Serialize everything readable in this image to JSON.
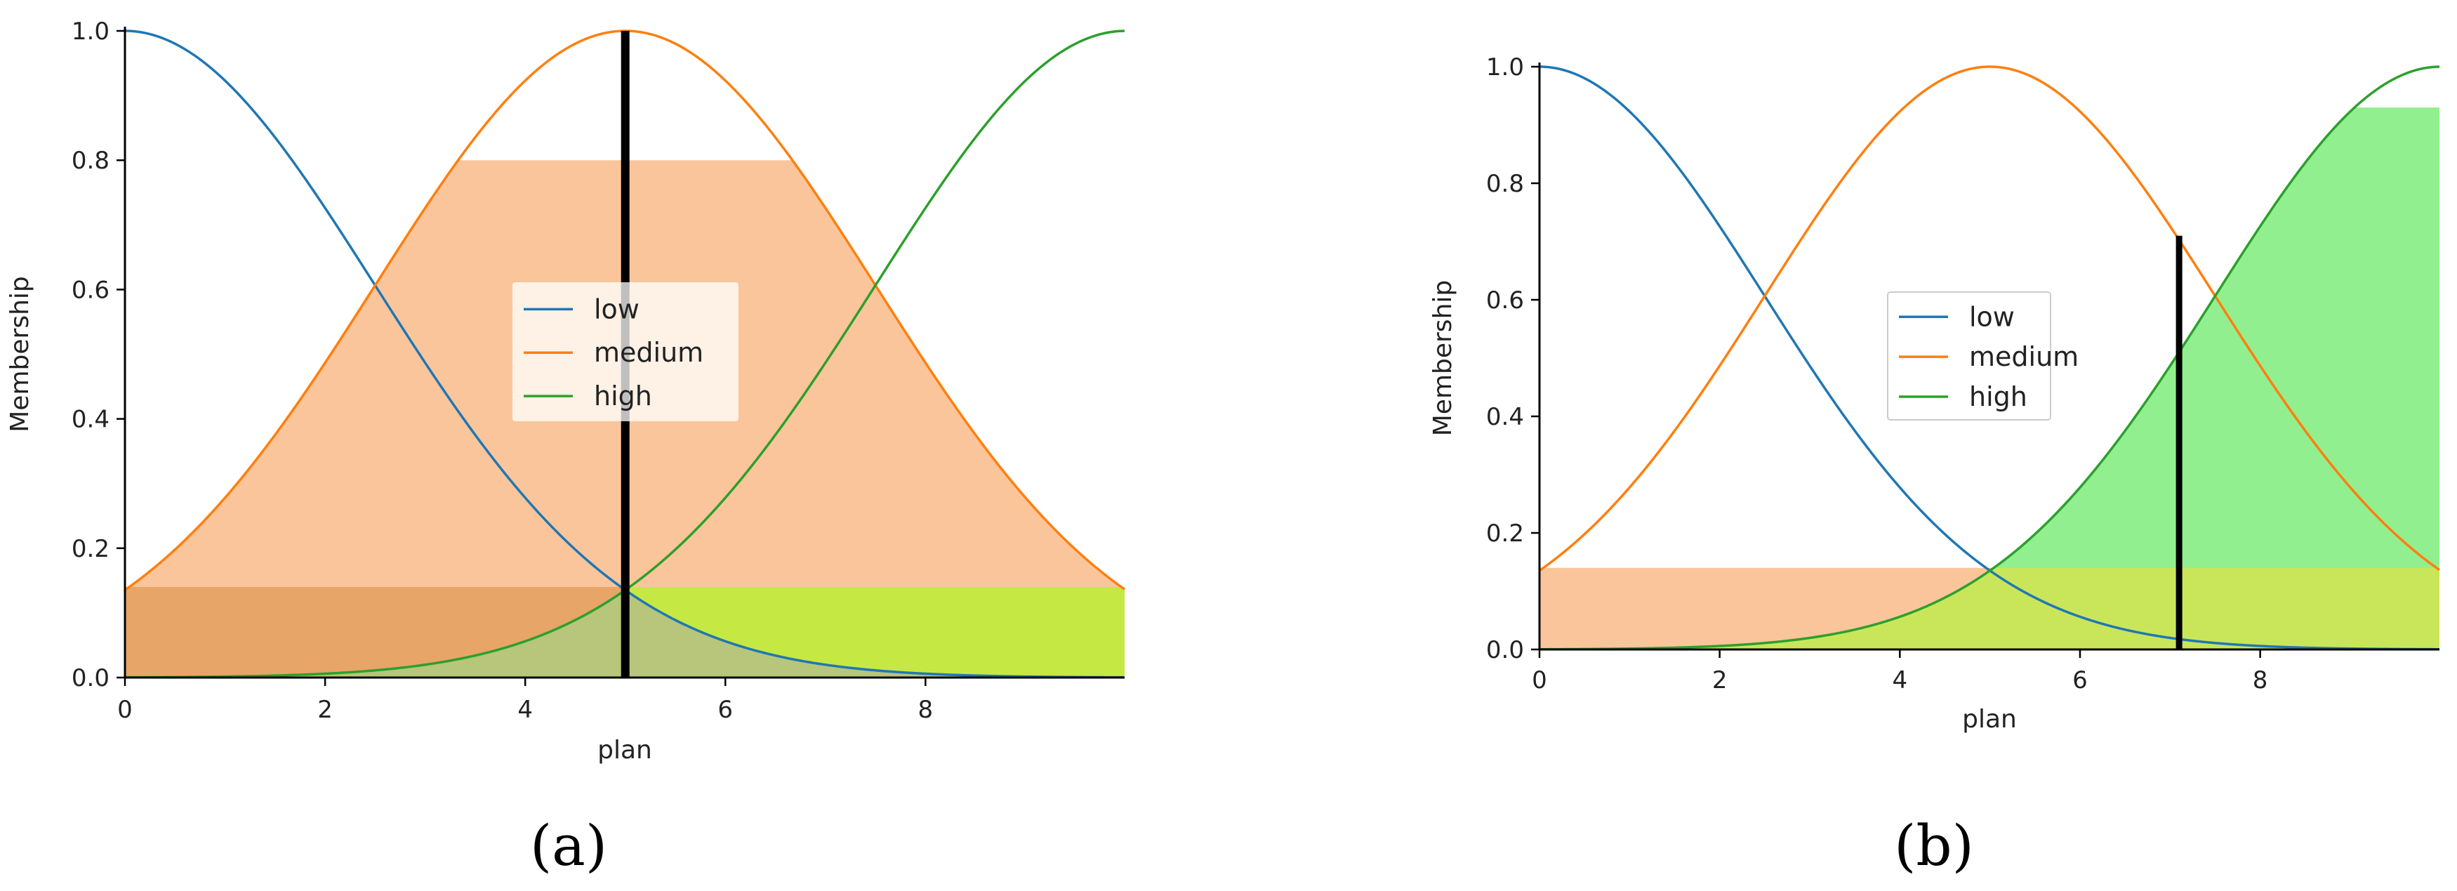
{
  "colors": {
    "low": "#1f77b4",
    "medium": "#ff7f0e",
    "high": "#2ca02c",
    "fill_medium": "#fbc59b",
    "fill_low": "#e8a568",
    "fill_high": "#c6e842",
    "fill_high_b": "#92ef8f",
    "fill_overlap_b": "#c9e65b"
  },
  "chart_data": [
    {
      "type": "line",
      "panel": "a",
      "caption": "(a)",
      "xlabel": "plan",
      "ylabel": "Membership",
      "xlim": [
        0,
        10
      ],
      "ylim": [
        0,
        1.0
      ],
      "x_ticks": [
        "0",
        "2",
        "4",
        "6",
        "8"
      ],
      "y_ticks": [
        "0.0",
        "0.2",
        "0.4",
        "0.6",
        "0.8",
        "1.0"
      ],
      "legend": {
        "placement": "center",
        "entries": [
          "low",
          "medium",
          "high"
        ]
      },
      "series": [
        {
          "name": "low",
          "function": "gaussian",
          "mean": 0,
          "sigma": 2.5
        },
        {
          "name": "medium",
          "function": "gaussian",
          "mean": 5,
          "sigma": 2.5
        },
        {
          "name": "high",
          "function": "gaussian",
          "mean": 10,
          "sigma": 2.5
        }
      ],
      "activations": {
        "low": 0.14,
        "medium": 0.8,
        "high": 0.14
      },
      "crisp_output": 5.0
    },
    {
      "type": "line",
      "panel": "b",
      "caption": "(b)",
      "xlabel": "plan",
      "ylabel": "Membership",
      "xlim": [
        0,
        10
      ],
      "ylim": [
        0,
        1.0
      ],
      "x_ticks": [
        "0",
        "2",
        "4",
        "6",
        "8"
      ],
      "y_ticks": [
        "0.0",
        "0.2",
        "0.4",
        "0.6",
        "0.8",
        "1.0"
      ],
      "legend": {
        "placement": "center",
        "entries": [
          "low",
          "medium",
          "high"
        ]
      },
      "series": [
        {
          "name": "low",
          "function": "gaussian",
          "mean": 0,
          "sigma": 2.5
        },
        {
          "name": "medium",
          "function": "gaussian",
          "mean": 5,
          "sigma": 2.5
        },
        {
          "name": "high",
          "function": "gaussian",
          "mean": 10,
          "sigma": 2.5
        }
      ],
      "activations": {
        "low": 0.0,
        "medium": 0.14,
        "high": 0.93
      },
      "crisp_output": 7.1,
      "crisp_output_height": 0.71
    }
  ]
}
